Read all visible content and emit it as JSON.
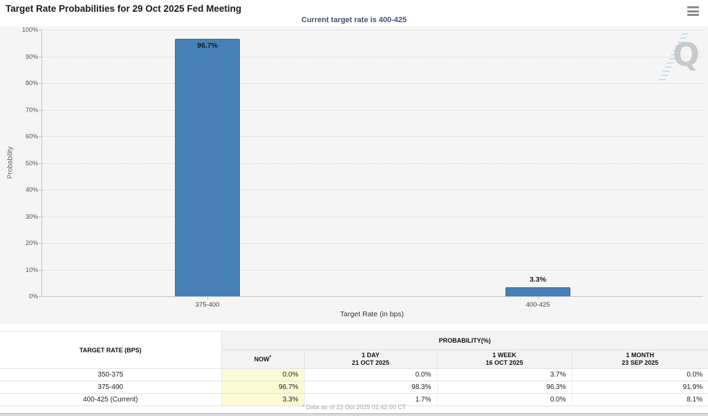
{
  "chart_data": {
    "type": "bar",
    "title": "Target Rate Probabilities for 29 Oct 2025 Fed Meeting",
    "subtitle": "Current target rate is 400-425",
    "categories": [
      "375-400",
      "400-425"
    ],
    "values": [
      96.7,
      3.3
    ],
    "value_labels": [
      "96.7%",
      "3.3%"
    ],
    "xlabel": "Target Rate (in bps)",
    "ylabel": "Probability",
    "ylim": [
      0,
      100
    ],
    "yticks": [
      "0%",
      "10%",
      "20%",
      "30%",
      "40%",
      "50%",
      "60%",
      "70%",
      "80%",
      "90%",
      "100%"
    ],
    "grid": "horizontal-dotted",
    "legend": "none",
    "bar_color": "#4581b6",
    "watermark_letter": "Q"
  },
  "header": {
    "menu_icon": "hamburger-menu"
  },
  "table": {
    "col1_header": "TARGET RATE (BPS)",
    "group_header": "PROBABILITY(%)",
    "columns": [
      {
        "line1": "NOW",
        "sup": "*",
        "line2": ""
      },
      {
        "line1": "1 DAY",
        "sup": "",
        "line2": "21 OCT 2025"
      },
      {
        "line1": "1 WEEK",
        "sup": "",
        "line2": "16 OCT 2025"
      },
      {
        "line1": "1 MONTH",
        "sup": "",
        "line2": "23 SEP 2025"
      }
    ],
    "rows": [
      {
        "label": "350-375",
        "values": [
          "0.0%",
          "0.0%",
          "3.7%",
          "0.0%"
        ]
      },
      {
        "label": "375-400",
        "values": [
          "96.7%",
          "98.3%",
          "96.3%",
          "91.9%"
        ]
      },
      {
        "label": "400-425 (Current)",
        "values": [
          "3.3%",
          "1.7%",
          "0.0%",
          "8.1%"
        ]
      }
    ],
    "footnote": "* Data as of 23 Oct 2025 02:42:00 CT"
  },
  "colors": {
    "bar": "#4581b6",
    "subtitle_text": "#3f5277",
    "now_column_bg": "#fafad5",
    "chart_panel_bg": "#f5f5f6"
  }
}
